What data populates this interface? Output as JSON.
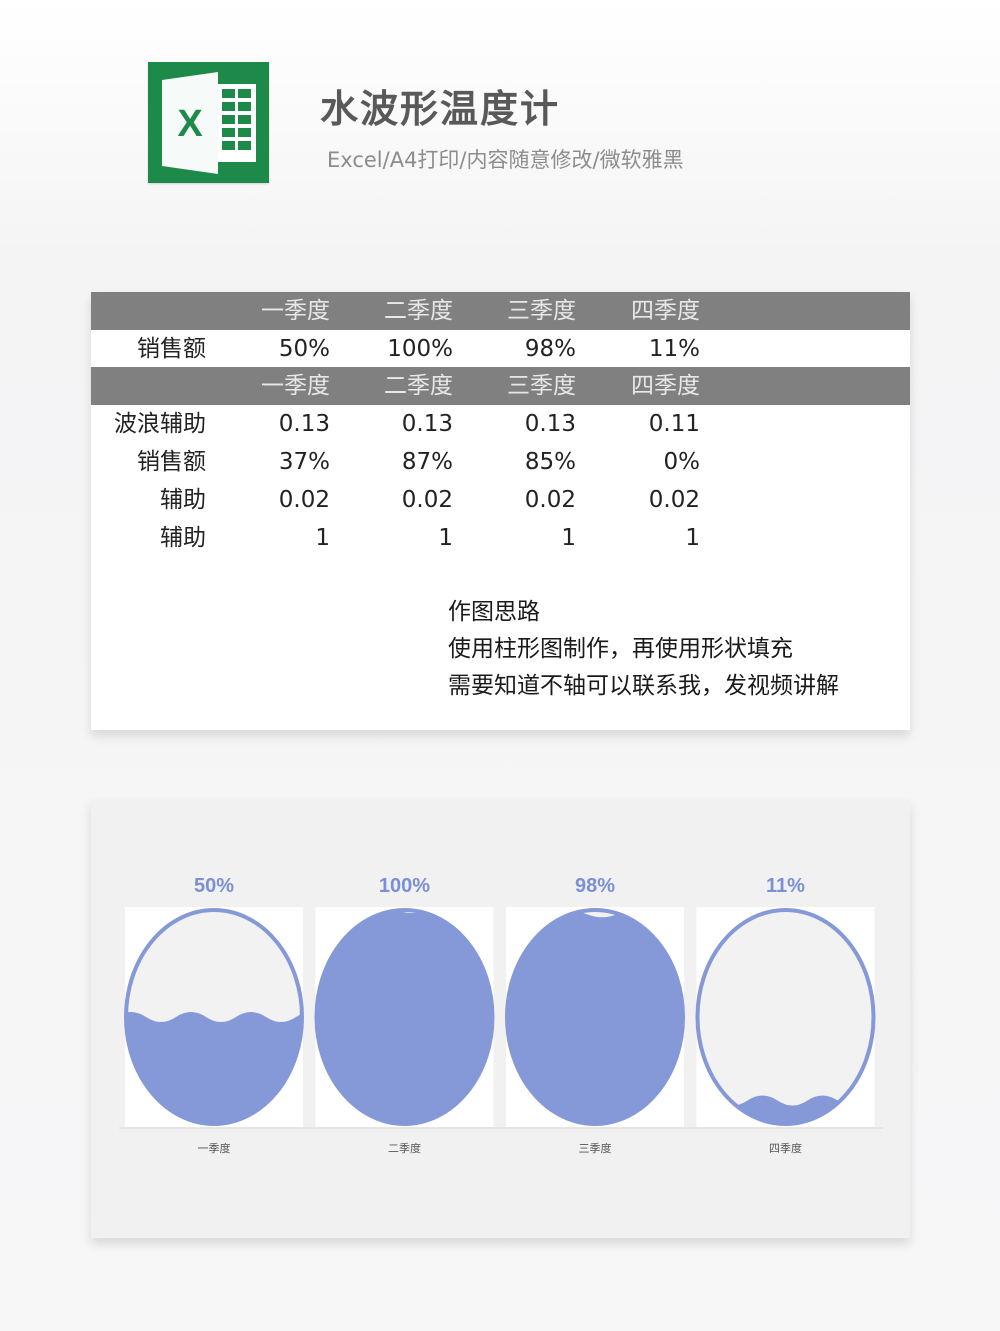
{
  "header": {
    "title": "水波形温度计",
    "subtitle": "Excel/A4打印/内容随意修改/微软雅黑",
    "logo_icon": "excel-logo-icon",
    "logo_letter": "X"
  },
  "table": {
    "header1": [
      "一季度",
      "二季度",
      "三季度",
      "四季度"
    ],
    "row_sales": {
      "label": "销售额",
      "values": [
        "50%",
        "100%",
        "98%",
        "11%"
      ]
    },
    "header2": [
      "一季度",
      "二季度",
      "三季度",
      "四季度"
    ],
    "rows": [
      {
        "label": "波浪辅助",
        "values": [
          "0.13",
          "0.13",
          "0.13",
          "0.11"
        ]
      },
      {
        "label": "销售额",
        "values": [
          "37%",
          "87%",
          "85%",
          "0%"
        ]
      },
      {
        "label": "辅助",
        "values": [
          "0.02",
          "0.02",
          "0.02",
          "0.02"
        ]
      },
      {
        "label": "辅助",
        "values": [
          "1",
          "1",
          "1",
          "1"
        ]
      }
    ]
  },
  "notes": {
    "heading": "作图思路",
    "line1": "使用柱形图制作，再使用形状填充",
    "line2": "需要知道不轴可以联系我，发视频讲解"
  },
  "colors": {
    "header_bar": "#808080",
    "fill": "#8598d8",
    "label_blue": "#7b8fd6",
    "logo_green": "#1e8a49"
  },
  "chart_data": {
    "type": "bar",
    "style": "water-wave thermometer (ellipse fill)",
    "categories": [
      "一季度",
      "二季度",
      "三季度",
      "四季度"
    ],
    "values": [
      0.5,
      1.0,
      0.98,
      0.11
    ],
    "data_labels": [
      "50%",
      "100%",
      "98%",
      "11%"
    ],
    "ylim": [
      0,
      1
    ]
  }
}
